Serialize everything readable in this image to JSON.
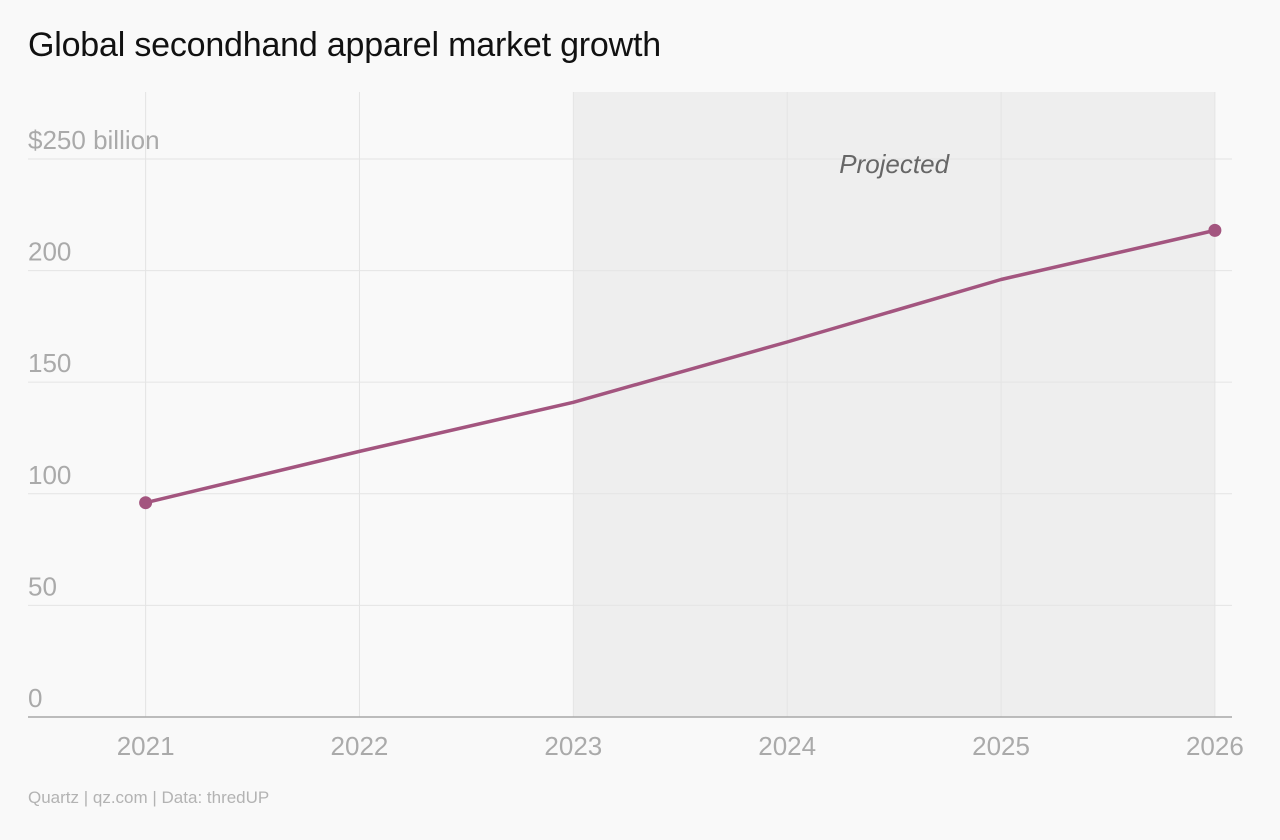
{
  "chart_data": {
    "type": "line",
    "title": "Global secondhand apparel market growth",
    "subtitle": "",
    "xlabel": "",
    "ylabel": "",
    "x": [
      2021,
      2022,
      2023,
      2024,
      2025,
      2026
    ],
    "x_tick_labels": [
      "2021",
      "2022",
      "2023",
      "2024",
      "2025",
      "2026"
    ],
    "y_ticks": [
      0,
      50,
      100,
      150,
      200,
      250
    ],
    "y_tick_labels": [
      "0",
      "50",
      "100",
      "150",
      "200",
      "$250 billion"
    ],
    "ylim": [
      0,
      280
    ],
    "xlim": [
      2020.45,
      2026.08
    ],
    "grid": true,
    "legend": "none",
    "series": [
      {
        "values": [
          96,
          119,
          141,
          168,
          196,
          218
        ],
        "color": "#a3557f",
        "endpoint_markers": true
      }
    ],
    "projected_region": {
      "x_start": 2023,
      "x_end": 2026,
      "label": "Projected",
      "shade_color": "#eeeeee"
    },
    "source": "Quartz | qz.com | Data: thredUP"
  }
}
